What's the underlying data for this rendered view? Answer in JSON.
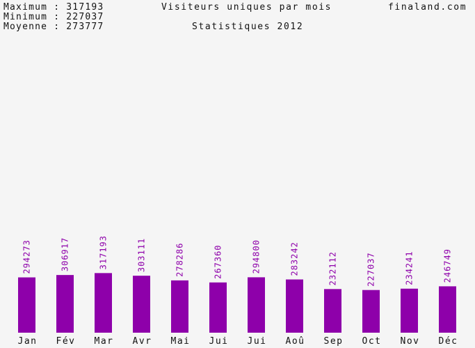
{
  "stats": {
    "max_label": "Maximum",
    "max_value": "317193",
    "min_label": "Minimum",
    "min_value": "227037",
    "avg_label": "Moyenne",
    "avg_value": "273777",
    "separator": ":"
  },
  "header": {
    "brand": "finaland.com"
  },
  "chart_data": {
    "type": "bar",
    "title": "Visiteurs uniques par mois",
    "subtitle": "Statistiques 2012",
    "categories": [
      "Jan",
      "Fév",
      "Mar",
      "Avr",
      "Mai",
      "Jui",
      "Jui",
      "Aoû",
      "Sep",
      "Oct",
      "Nov",
      "Déc"
    ],
    "values": [
      294273,
      306917,
      317193,
      303111,
      278286,
      267360,
      294800,
      283242,
      232112,
      227037,
      234241,
      246749
    ],
    "data_labels": [
      "294273",
      "306917",
      "317193",
      "303111",
      "278286",
      "267360",
      "294800",
      "283242",
      "232112",
      "227037",
      "234241",
      "246749"
    ],
    "xlabel": "",
    "ylabel": "",
    "ylim": [
      0,
      1000000
    ],
    "grid": false,
    "legend": "none",
    "bar_color": "#8e00aa",
    "label_color": "#8e00aa"
  }
}
